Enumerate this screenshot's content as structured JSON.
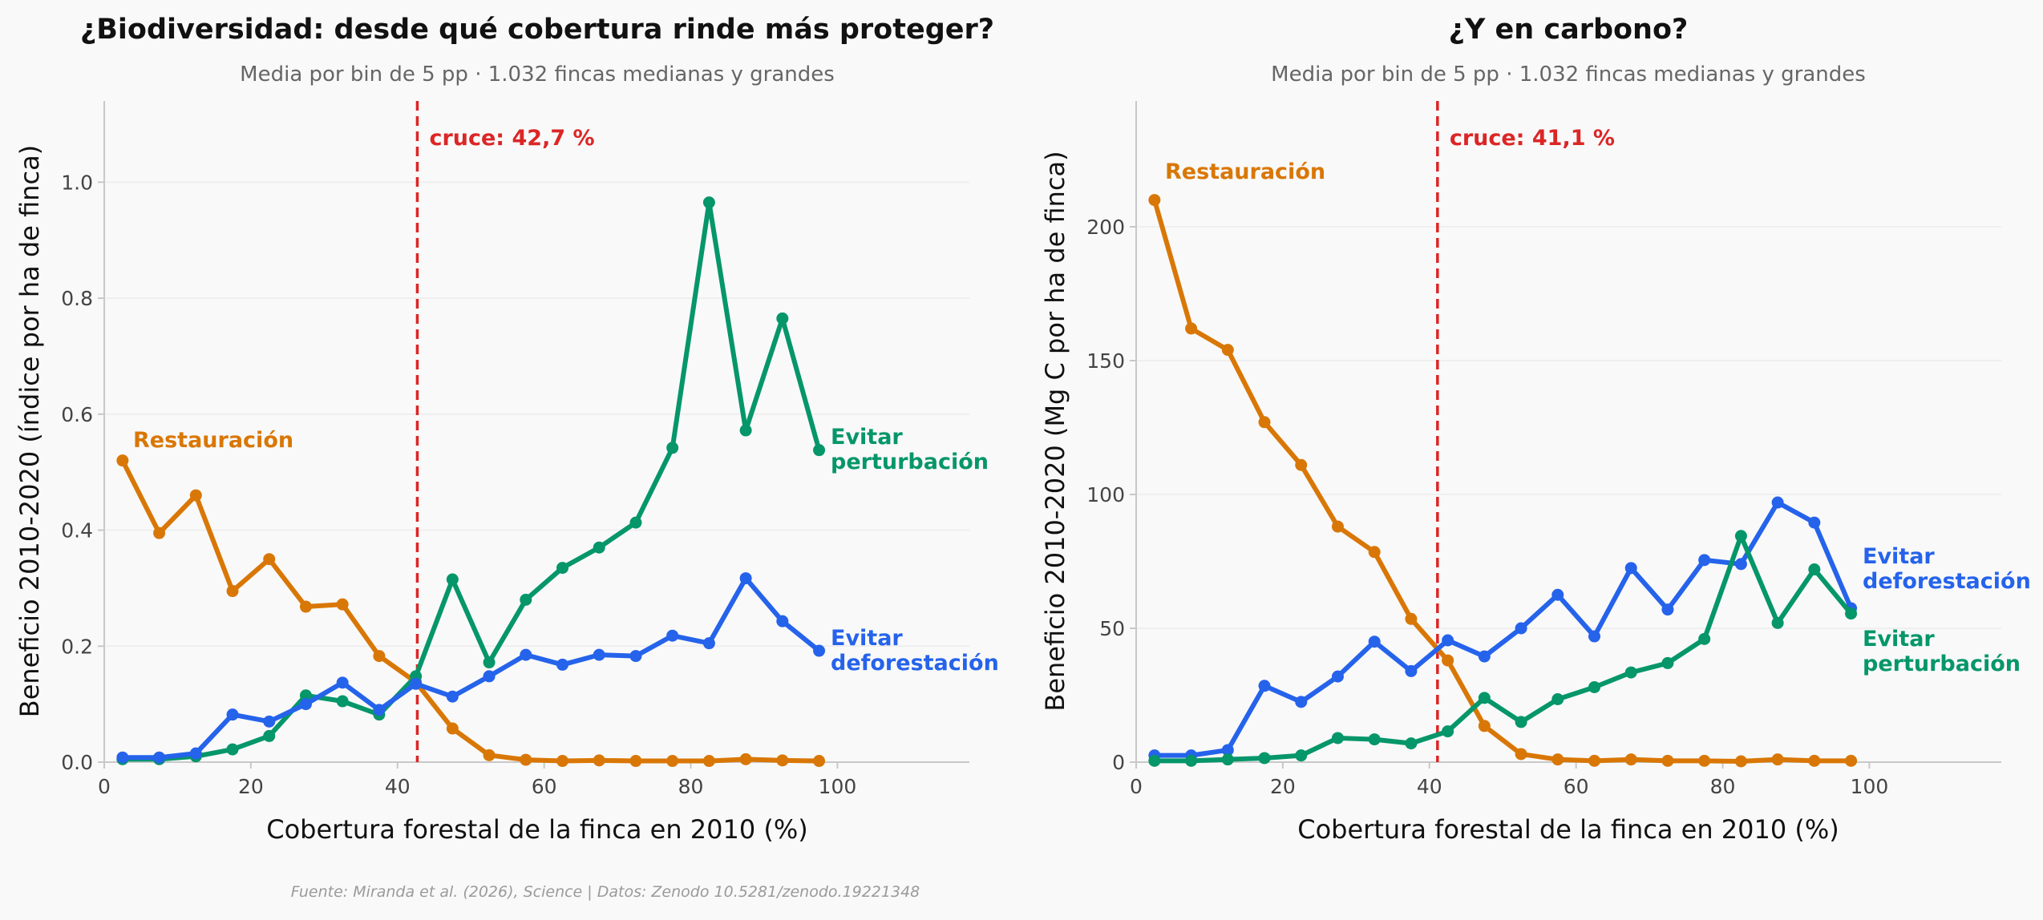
{
  "footer": "Fuente: Miranda et al. (2026), Science | Datos: Zenodo 10.5281/zenodo.19221348",
  "colors": {
    "restauracion": "#d97706",
    "deforestacion": "#2563eb",
    "perturbacion": "#059669",
    "cross": "#dc2626",
    "grid": "#ececec",
    "axis": "#c8c8c8",
    "text": "#444444"
  },
  "chart_data": [
    {
      "type": "line",
      "title": "¿Biodiversidad: desde qué cobertura rinde más proteger?",
      "subtitle": "Media por bin de 5 pp · 1.032 fincas medianas y grandes",
      "xlabel": "Cobertura forestal de la finca en 2010 (%)",
      "ylabel": "Beneficio 2010-2020 (índice por ha de finca)",
      "xlim": [
        0,
        118
      ],
      "ylim": [
        0,
        1.14
      ],
      "xticks": [
        0,
        20,
        40,
        60,
        80,
        100
      ],
      "yticks": [
        0.0,
        0.2,
        0.4,
        0.6,
        0.8,
        1.0
      ],
      "ytick_labels": [
        "0.0",
        "0.2",
        "0.4",
        "0.6",
        "0.8",
        "1.0"
      ],
      "grid": "horizontal",
      "crossover": {
        "x": 42.7,
        "label": "cruce: 42,7 %"
      },
      "x": [
        2.5,
        7.5,
        12.5,
        17.5,
        22.5,
        27.5,
        32.5,
        37.5,
        42.5,
        47.5,
        52.5,
        57.5,
        62.5,
        67.5,
        72.5,
        77.5,
        82.5,
        87.5,
        92.5,
        97.5
      ],
      "series": [
        {
          "key": "restauracion",
          "name": "Restauración",
          "label_lines": [
            "Restauración"
          ],
          "values": [
            0.52,
            0.395,
            0.46,
            0.295,
            0.35,
            0.268,
            0.272,
            0.183,
            0.138,
            0.058,
            0.012,
            0.004,
            0.002,
            0.003,
            0.002,
            0.002,
            0.002,
            0.005,
            0.003,
            0.002
          ]
        },
        {
          "key": "perturbacion",
          "name": "Evitar perturbación",
          "label_lines": [
            "Evitar",
            "perturbación"
          ],
          "values": [
            0.005,
            0.005,
            0.01,
            0.022,
            0.045,
            0.115,
            0.105,
            0.082,
            0.148,
            0.315,
            0.172,
            0.28,
            0.335,
            0.37,
            0.413,
            0.542,
            0.965,
            0.572,
            0.765,
            0.538
          ]
        },
        {
          "key": "deforestacion",
          "name": "Evitar deforestación",
          "label_lines": [
            "Evitar",
            "deforestación"
          ],
          "values": [
            0.008,
            0.008,
            0.015,
            0.082,
            0.07,
            0.1,
            0.137,
            0.09,
            0.135,
            0.113,
            0.148,
            0.185,
            0.168,
            0.185,
            0.183,
            0.218,
            0.205,
            0.317,
            0.243,
            0.192
          ]
        }
      ]
    },
    {
      "type": "line",
      "title": "¿Y en carbono?",
      "subtitle": "Media por bin de 5 pp · 1.032 fincas medianas y grandes",
      "xlabel": "Cobertura forestal de la finca en 2010 (%)",
      "ylabel": "Beneficio 2010-2020 (Mg C por ha de finca)",
      "xlim": [
        0,
        118
      ],
      "ylim": [
        0,
        247
      ],
      "xticks": [
        0,
        20,
        40,
        60,
        80,
        100
      ],
      "yticks": [
        0,
        50,
        100,
        150,
        200
      ],
      "ytick_labels": [
        "0",
        "50",
        "100",
        "150",
        "200"
      ],
      "grid": "horizontal",
      "crossover": {
        "x": 41.1,
        "label": "cruce: 41,1 %"
      },
      "x": [
        2.5,
        7.5,
        12.5,
        17.5,
        22.5,
        27.5,
        32.5,
        37.5,
        42.5,
        47.5,
        52.5,
        57.5,
        62.5,
        67.5,
        72.5,
        77.5,
        82.5,
        87.5,
        92.5,
        97.5
      ],
      "series": [
        {
          "key": "restauracion",
          "name": "Restauración",
          "label_lines": [
            "Restauración"
          ],
          "values": [
            210,
            162,
            154,
            127,
            111,
            88,
            78.5,
            53.5,
            38,
            13.5,
            3,
            1,
            0.5,
            1,
            0.5,
            0.5,
            0.3,
            1,
            0.5,
            0.5
          ]
        },
        {
          "key": "deforestacion",
          "name": "Evitar deforestación",
          "label_lines": [
            "Evitar",
            "deforestación"
          ],
          "values": [
            2.5,
            2.5,
            4.5,
            28.5,
            22.5,
            32,
            45,
            34,
            45.5,
            39.5,
            50,
            62.5,
            47,
            72.5,
            57,
            75.5,
            74,
            97,
            89.5,
            57.5
          ]
        },
        {
          "key": "perturbacion",
          "name": "Evitar perturbación",
          "label_lines": [
            "Evitar",
            "perturbación"
          ],
          "values": [
            0.5,
            0.5,
            1,
            1.5,
            2.5,
            9,
            8.5,
            7,
            11.5,
            24,
            15,
            23.5,
            28,
            33.5,
            37,
            46,
            84.5,
            52,
            72,
            55.5
          ]
        }
      ]
    }
  ]
}
